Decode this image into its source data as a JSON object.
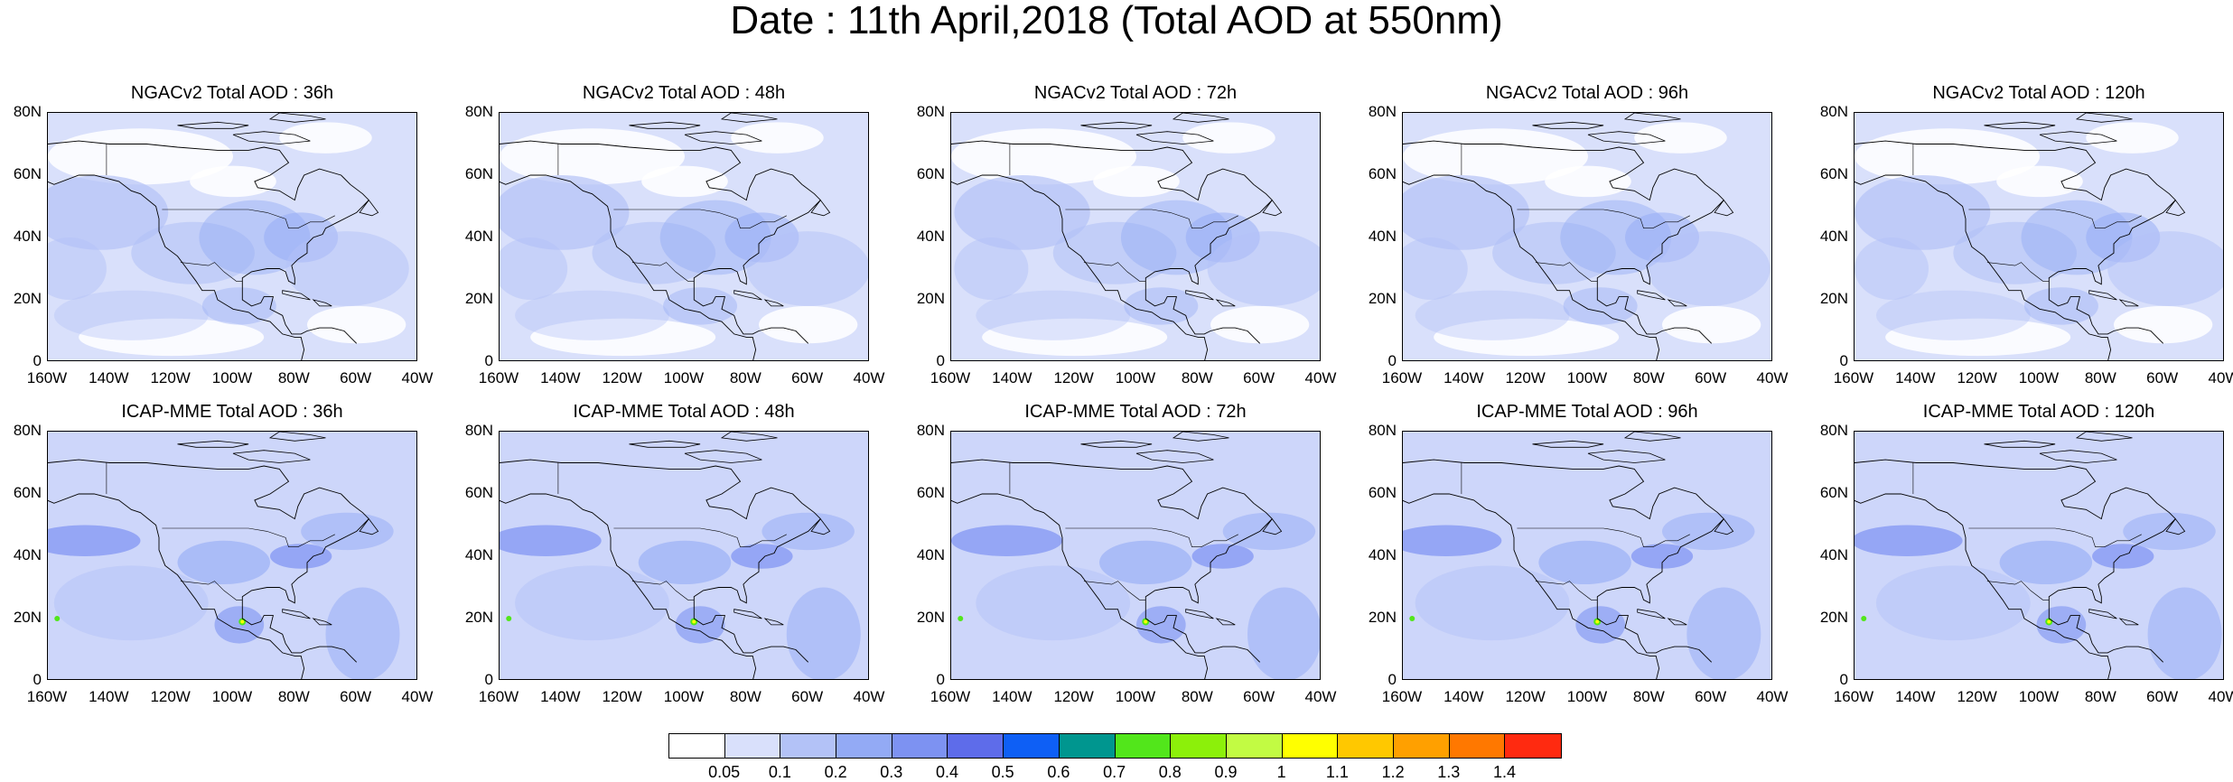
{
  "title": "Date : 11th April,2018 (Total AOD at 550nm)",
  "panels": [
    {
      "title": "NGACv2 Total AOD : 36h",
      "model": "NGACv2",
      "lead": "36h"
    },
    {
      "title": "NGACv2 Total AOD : 48h",
      "model": "NGACv2",
      "lead": "48h"
    },
    {
      "title": "NGACv2 Total AOD : 72h",
      "model": "NGACv2",
      "lead": "72h"
    },
    {
      "title": "NGACv2 Total AOD : 96h",
      "model": "NGACv2",
      "lead": "96h"
    },
    {
      "title": "NGACv2 Total AOD : 120h",
      "model": "NGACv2",
      "lead": "120h"
    },
    {
      "title": "ICAP-MME Total AOD : 36h",
      "model": "ICAP-MME",
      "lead": "36h"
    },
    {
      "title": "ICAP-MME Total AOD : 48h",
      "model": "ICAP-MME",
      "lead": "48h"
    },
    {
      "title": "ICAP-MME Total AOD : 72h",
      "model": "ICAP-MME",
      "lead": "72h"
    },
    {
      "title": "ICAP-MME Total AOD : 96h",
      "model": "ICAP-MME",
      "lead": "96h"
    },
    {
      "title": "ICAP-MME Total AOD : 120h",
      "model": "ICAP-MME",
      "lead": "120h"
    }
  ],
  "y_ticks": [
    "80N",
    "60N",
    "40N",
    "20N",
    "0"
  ],
  "x_ticks": [
    "160W",
    "140W",
    "120W",
    "100W",
    "80W",
    "60W",
    "40W"
  ],
  "colorbar": {
    "labels": [
      "0.05",
      "0.1",
      "0.2",
      "0.3",
      "0.4",
      "0.5",
      "0.6",
      "0.7",
      "0.8",
      "0.9",
      "1",
      "1.1",
      "1.2",
      "1.3",
      "1.4"
    ],
    "colors": [
      "#ffffff",
      "#d9e0fb",
      "#b3c2f7",
      "#93aaf5",
      "#7d92f2",
      "#5e6cea",
      "#0e5ff5",
      "#00968f",
      "#52e61b",
      "#8cf00a",
      "#c2fb43",
      "#ffff00",
      "#ffc800",
      "#ffa000",
      "#ff7800",
      "#ff2a10"
    ]
  }
}
